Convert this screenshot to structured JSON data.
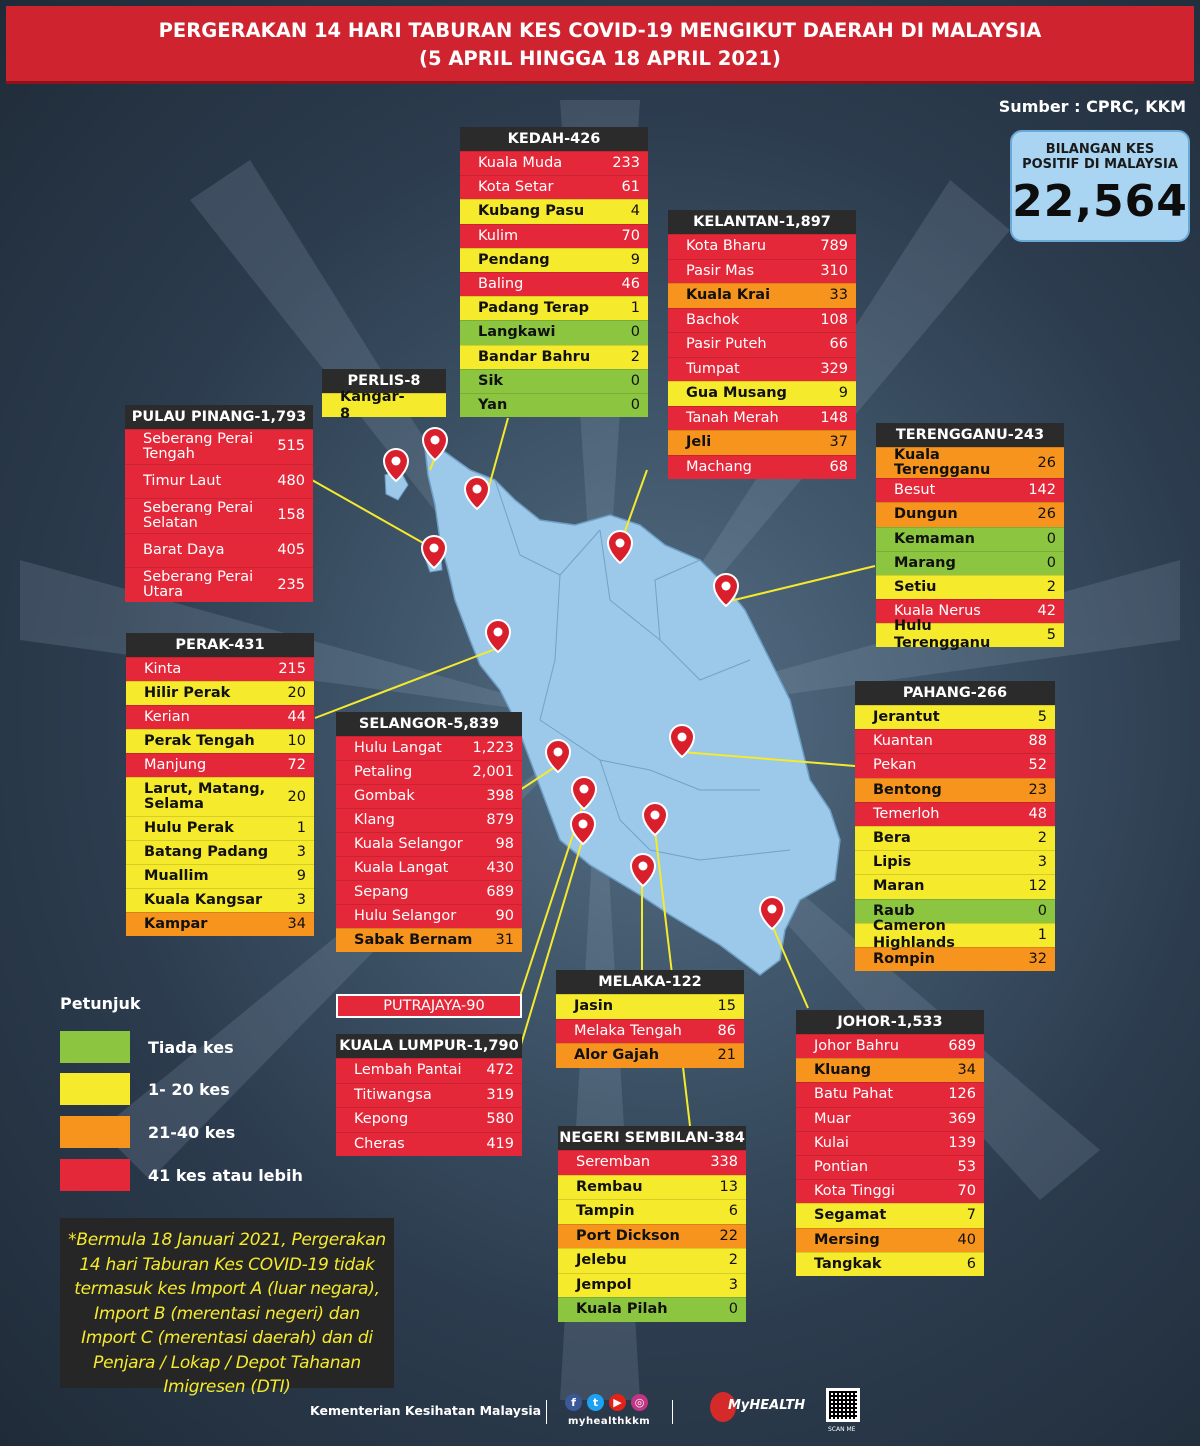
{
  "header": {
    "title_line1": "PERGERAKAN 14 HARI TABURAN KES COVID-19 MENGIKUT DAERAH DI MALAYSIA",
    "title_line2": "(5 APRIL HINGGA 18 APRIL 2021)"
  },
  "source": "Sumber : CPRC, KKM",
  "total": {
    "label": "BILANGAN KES POSITIF DI MALAYSIA",
    "value": "22,564"
  },
  "colors": {
    "green": "#8cc540",
    "yellow": "#f6ea2d",
    "orange": "#f7941d",
    "red": "#e4283a"
  },
  "states": {
    "kedah": {
      "title": "KEDAH-426",
      "rows": [
        {
          "name": "Kuala Muda",
          "value": "233",
          "color": "red"
        },
        {
          "name": "Kota Setar",
          "value": "61",
          "color": "red"
        },
        {
          "name": "Kubang Pasu",
          "value": "4",
          "color": "yellow"
        },
        {
          "name": "Kulim",
          "value": "70",
          "color": "red"
        },
        {
          "name": "Pendang",
          "value": "9",
          "color": "yellow"
        },
        {
          "name": "Baling",
          "value": "46",
          "color": "red"
        },
        {
          "name": "Padang Terap",
          "value": "1",
          "color": "yellow"
        },
        {
          "name": "Langkawi",
          "value": "0",
          "color": "green"
        },
        {
          "name": "Bandar Bahru",
          "value": "2",
          "color": "yellow"
        },
        {
          "name": "Sik",
          "value": "0",
          "color": "green"
        },
        {
          "name": "Yan",
          "value": "0",
          "color": "green"
        }
      ]
    },
    "kelantan": {
      "title": "KELANTAN-1,897",
      "rows": [
        {
          "name": "Kota Bharu",
          "value": "789",
          "color": "red"
        },
        {
          "name": "Pasir Mas",
          "value": "310",
          "color": "red"
        },
        {
          "name": "Kuala Krai",
          "value": "33",
          "color": "orange"
        },
        {
          "name": "Bachok",
          "value": "108",
          "color": "red"
        },
        {
          "name": "Pasir Puteh",
          "value": "66",
          "color": "red"
        },
        {
          "name": "Tumpat",
          "value": "329",
          "color": "red"
        },
        {
          "name": "Gua Musang",
          "value": "9",
          "color": "yellow"
        },
        {
          "name": "Tanah Merah",
          "value": "148",
          "color": "red"
        },
        {
          "name": "Jeli",
          "value": "37",
          "color": "orange"
        },
        {
          "name": "Machang",
          "value": "68",
          "color": "red"
        }
      ]
    },
    "perlis": {
      "title": "PERLIS-8",
      "rows": [
        {
          "name": "Kangar-8",
          "value": "",
          "color": "yellow"
        }
      ]
    },
    "pulau_pinang": {
      "title": "PULAU PINANG-1,793",
      "rows": [
        {
          "name": "Seberang Perai Tengah",
          "value": "515",
          "color": "red"
        },
        {
          "name": "Timur Laut",
          "value": "480",
          "color": "red"
        },
        {
          "name": "Seberang Perai Selatan",
          "value": "158",
          "color": "red"
        },
        {
          "name": "Barat Daya",
          "value": "405",
          "color": "red"
        },
        {
          "name": "Seberang Perai Utara",
          "value": "235",
          "color": "red"
        }
      ]
    },
    "terengganu": {
      "title": "TERENGGANU-243",
      "rows": [
        {
          "name": "Kuala Terengganu",
          "value": "26",
          "color": "orange"
        },
        {
          "name": "Besut",
          "value": "142",
          "color": "red"
        },
        {
          "name": "Dungun",
          "value": "26",
          "color": "orange"
        },
        {
          "name": "Kemaman",
          "value": "0",
          "color": "green"
        },
        {
          "name": "Marang",
          "value": "0",
          "color": "green"
        },
        {
          "name": "Setiu",
          "value": "2",
          "color": "yellow"
        },
        {
          "name": "Kuala Nerus",
          "value": "42",
          "color": "red"
        },
        {
          "name": "Hulu Terengganu",
          "value": "5",
          "color": "yellow"
        }
      ]
    },
    "perak": {
      "title": "PERAK-431",
      "rows": [
        {
          "name": "Kinta",
          "value": "215",
          "color": "red"
        },
        {
          "name": "Hilir Perak",
          "value": "20",
          "color": "yellow"
        },
        {
          "name": "Kerian",
          "value": "44",
          "color": "red"
        },
        {
          "name": "Perak Tengah",
          "value": "10",
          "color": "yellow"
        },
        {
          "name": "Manjung",
          "value": "72",
          "color": "red"
        },
        {
          "name": "Larut, Matang, Selama",
          "value": "20",
          "color": "yellow"
        },
        {
          "name": "Hulu Perak",
          "value": "1",
          "color": "yellow"
        },
        {
          "name": "Batang Padang",
          "value": "3",
          "color": "yellow"
        },
        {
          "name": "Muallim",
          "value": "9",
          "color": "yellow"
        },
        {
          "name": "Kuala Kangsar",
          "value": "3",
          "color": "yellow"
        },
        {
          "name": "Kampar",
          "value": "34",
          "color": "orange"
        }
      ]
    },
    "selangor": {
      "title": "SELANGOR-5,839",
      "rows": [
        {
          "name": "Hulu Langat",
          "value": "1,223",
          "color": "red"
        },
        {
          "name": "Petaling",
          "value": "2,001",
          "color": "red"
        },
        {
          "name": "Gombak",
          "value": "398",
          "color": "red"
        },
        {
          "name": "Klang",
          "value": "879",
          "color": "red"
        },
        {
          "name": "Kuala Selangor",
          "value": "98",
          "color": "red"
        },
        {
          "name": "Kuala Langat",
          "value": "430",
          "color": "red"
        },
        {
          "name": "Sepang",
          "value": "689",
          "color": "red"
        },
        {
          "name": "Hulu Selangor",
          "value": "90",
          "color": "red"
        },
        {
          "name": "Sabak Bernam",
          "value": "31",
          "color": "orange"
        }
      ]
    },
    "pahang": {
      "title": "PAHANG-266",
      "rows": [
        {
          "name": "Jerantut",
          "value": "5",
          "color": "yellow"
        },
        {
          "name": "Kuantan",
          "value": "88",
          "color": "red"
        },
        {
          "name": "Pekan",
          "value": "52",
          "color": "red"
        },
        {
          "name": "Bentong",
          "value": "23",
          "color": "orange"
        },
        {
          "name": "Temerloh",
          "value": "48",
          "color": "red"
        },
        {
          "name": "Bera",
          "value": "2",
          "color": "yellow"
        },
        {
          "name": "Lipis",
          "value": "3",
          "color": "yellow"
        },
        {
          "name": "Maran",
          "value": "12",
          "color": "yellow"
        },
        {
          "name": "Raub",
          "value": "0",
          "color": "green"
        },
        {
          "name": "Cameron Highlands",
          "value": "1",
          "color": "yellow"
        },
        {
          "name": "Rompin",
          "value": "32",
          "color": "orange"
        }
      ]
    },
    "putrajaya": {
      "title": "PUTRAJAYA-90",
      "rows": []
    },
    "kuala_lumpur": {
      "title": "KUALA LUMPUR-1,790",
      "rows": [
        {
          "name": "Lembah Pantai",
          "value": "472",
          "color": "red"
        },
        {
          "name": "Titiwangsa",
          "value": "319",
          "color": "red"
        },
        {
          "name": "Kepong",
          "value": "580",
          "color": "red"
        },
        {
          "name": "Cheras",
          "value": "419",
          "color": "red"
        }
      ]
    },
    "melaka": {
      "title": "MELAKA-122",
      "rows": [
        {
          "name": "Jasin",
          "value": "15",
          "color": "yellow"
        },
        {
          "name": "Melaka Tengah",
          "value": "86",
          "color": "red"
        },
        {
          "name": "Alor Gajah",
          "value": "21",
          "color": "orange"
        }
      ]
    },
    "johor": {
      "title": "JOHOR-1,533",
      "rows": [
        {
          "name": "Johor Bahru",
          "value": "689",
          "color": "red"
        },
        {
          "name": "Kluang",
          "value": "34",
          "color": "orange"
        },
        {
          "name": "Batu Pahat",
          "value": "126",
          "color": "red"
        },
        {
          "name": "Muar",
          "value": "369",
          "color": "red"
        },
        {
          "name": "Kulai",
          "value": "139",
          "color": "red"
        },
        {
          "name": "Pontian",
          "value": "53",
          "color": "red"
        },
        {
          "name": "Kota Tinggi",
          "value": "70",
          "color": "red"
        },
        {
          "name": "Segamat",
          "value": "7",
          "color": "yellow"
        },
        {
          "name": "Mersing",
          "value": "40",
          "color": "orange"
        },
        {
          "name": "Tangkak",
          "value": "6",
          "color": "yellow"
        }
      ]
    },
    "negeri_sembilan": {
      "title": "NEGERI SEMBILAN-384",
      "rows": [
        {
          "name": "Seremban",
          "value": "338",
          "color": "red"
        },
        {
          "name": "Rembau",
          "value": "13",
          "color": "yellow"
        },
        {
          "name": "Tampin",
          "value": "6",
          "color": "yellow"
        },
        {
          "name": "Port Dickson",
          "value": "22",
          "color": "orange"
        },
        {
          "name": "Jelebu",
          "value": "2",
          "color": "yellow"
        },
        {
          "name": "Jempol",
          "value": "3",
          "color": "yellow"
        },
        {
          "name": "Kuala Pilah",
          "value": "0",
          "color": "green"
        }
      ]
    }
  },
  "legend": {
    "title": "Petunjuk",
    "items": [
      {
        "label": "Tiada kes",
        "color": "green"
      },
      {
        "label": "1- 20 kes",
        "color": "yellow"
      },
      {
        "label": "21-40 kes",
        "color": "orange"
      },
      {
        "label": "41 kes atau lebih",
        "color": "red"
      }
    ]
  },
  "note": "*Bermula 18 Januari 2021, Pergerakan 14 hari Taburan Kes COVID-19 tidak termasuk kes Import A (luar negara), Import B (merentasi negeri) dan Import C (merentasi daerah) dan di Penjara / Lokap / Depot Tahanan Imigresen (DTI)",
  "footer": {
    "ministry": "Kementerian Kesihatan Malaysia",
    "social_handle": "myhealthkkm",
    "logo_text": "MyHEALTH",
    "qr_label": "SCAN ME"
  },
  "icons": [
    "map-pin-icon",
    "facebook-icon",
    "twitter-icon",
    "youtube-icon",
    "instagram-icon",
    "qr-code-icon"
  ]
}
